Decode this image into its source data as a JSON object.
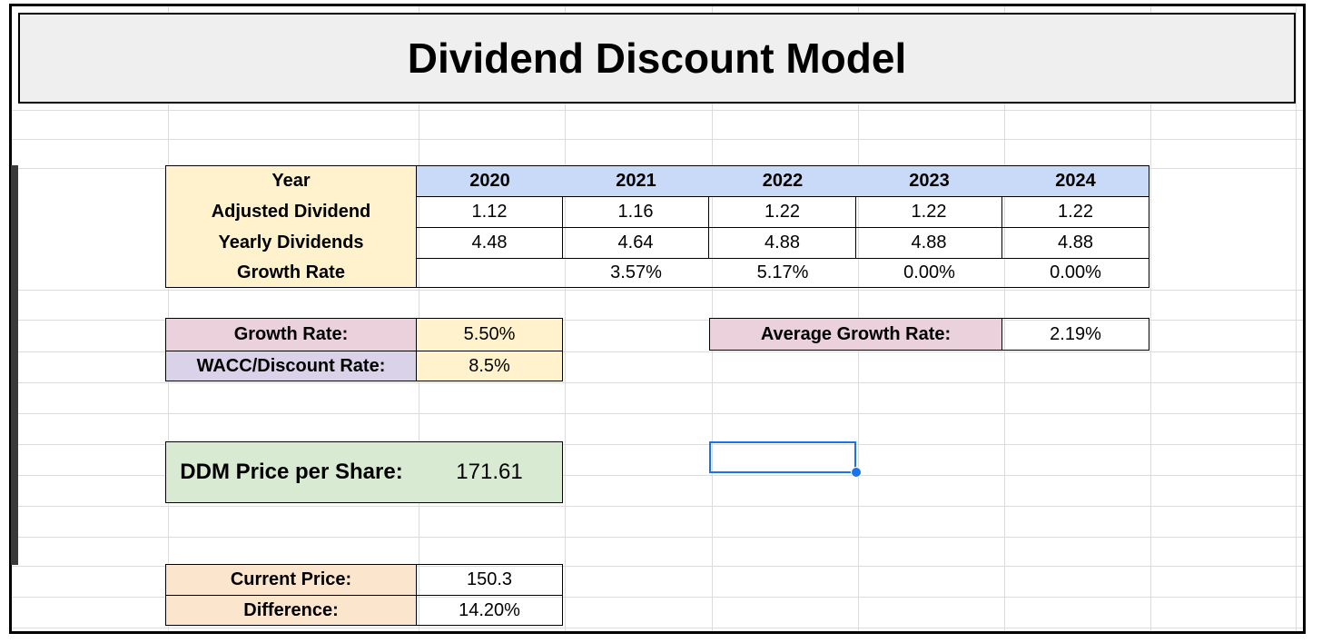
{
  "title": "Dividend Discount Model",
  "table": {
    "row_labels": {
      "year": "Year",
      "adjusted_dividend": "Adjusted Dividend",
      "yearly_dividends": "Yearly Dividends",
      "growth_rate": "Growth Rate"
    },
    "years": [
      "2020",
      "2021",
      "2022",
      "2023",
      "2024"
    ],
    "adjusted_dividend": [
      "1.12",
      "1.16",
      "1.22",
      "1.22",
      "1.22"
    ],
    "yearly_dividends": [
      "4.48",
      "4.64",
      "4.88",
      "4.88",
      "4.88"
    ],
    "growth_rate": [
      "",
      "3.57%",
      "5.17%",
      "0.00%",
      "0.00%"
    ]
  },
  "inputs": {
    "growth_rate_label": "Growth Rate:",
    "growth_rate_value": "5.50%",
    "wacc_label": "WACC/Discount Rate:",
    "wacc_value": "8.5%"
  },
  "average": {
    "label": "Average Growth Rate:",
    "value": "2.19%"
  },
  "ddm": {
    "label": "DDM Price per Share:",
    "value": "171.61"
  },
  "market": {
    "current_price_label": "Current Price:",
    "current_price_value": "150.3",
    "difference_label": "Difference:",
    "difference_value": "14.20%"
  },
  "colors": {
    "header_yellow": "#fff2cc",
    "header_blue": "#c9daf8",
    "label_pink": "#ead1dc",
    "label_lavender": "#d9d2e9",
    "result_green": "#d9ead3",
    "label_peach": "#fce5cd",
    "selection_blue": "#1a73e8"
  }
}
